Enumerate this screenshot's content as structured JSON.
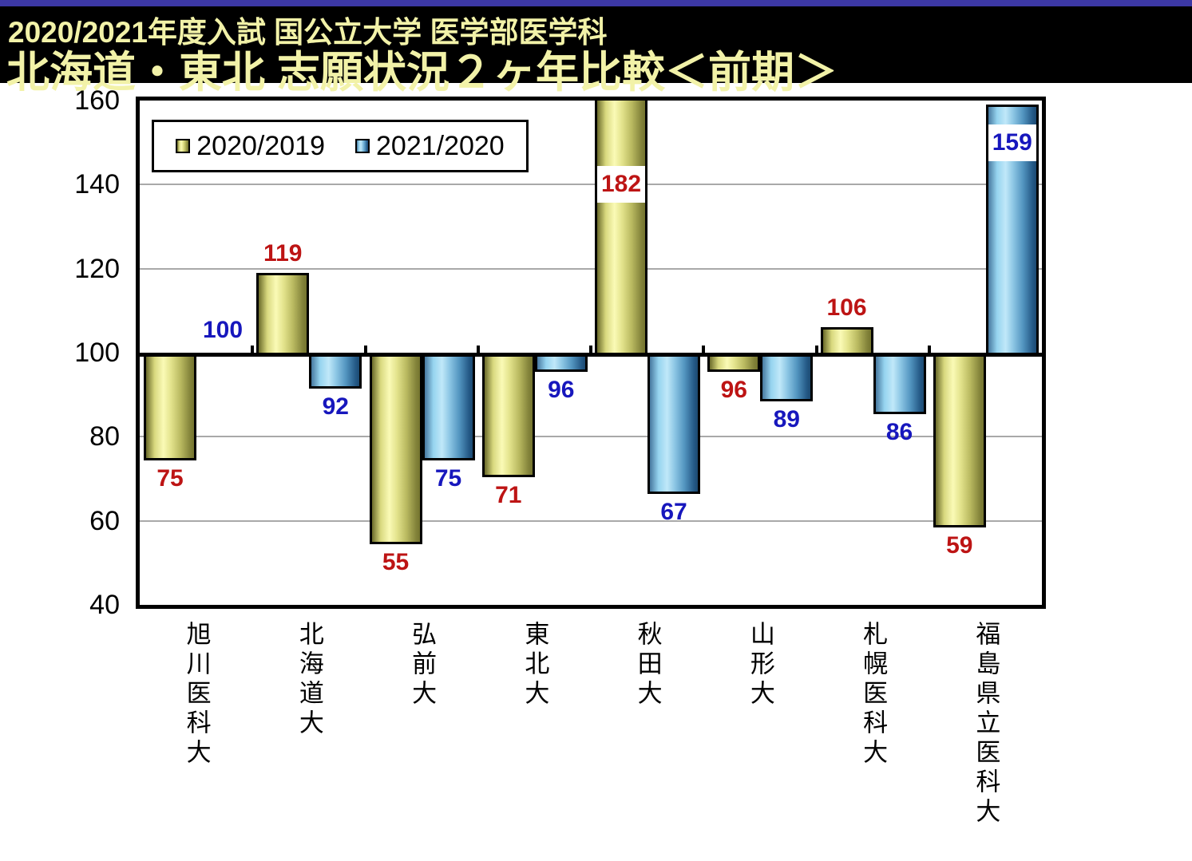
{
  "top_strip": {
    "color": "#3c38a5"
  },
  "header": {
    "bg": "#000000",
    "text_color": "#f2f2a8",
    "line1": "2020/2021年度入試 国公立大学 医学部医学科",
    "line2": "北海道・東北 志願状況２ヶ年比較＜前期＞"
  },
  "chart_data": {
    "type": "bar",
    "title": "北海道・東北 志願状況2ヶ年比較（前期） 前年度比指数",
    "categories": [
      "旭川医科大",
      "北海道大",
      "弘前大",
      "東北大",
      "秋田大",
      "山形大",
      "札幌医科大",
      "福島県立医科大"
    ],
    "series": [
      {
        "name": "2020/2019",
        "values": [
          75,
          119,
          55,
          71,
          182,
          96,
          106,
          59
        ],
        "label_color": "#bd1414",
        "label_pos": [
          "below",
          "above",
          "below",
          "below",
          "box:140",
          "below",
          "above",
          "below"
        ],
        "gradient": [
          "#6b6b2a",
          "#d9d97f",
          "#fafab6",
          "#e3e38c",
          "#b9b960",
          "#83833a",
          "#74742f"
        ]
      },
      {
        "name": "2021/2020",
        "values": [
          100,
          92,
          75,
          96,
          67,
          89,
          86,
          159
        ],
        "label_color": "#1717bd",
        "label_pos": [
          "above",
          "below",
          "below",
          "below",
          "below",
          "below",
          "below",
          "box:150"
        ],
        "gradient": [
          "#47789f",
          "#96d4ef",
          "#c0e8f9",
          "#8cc6e4",
          "#5395c0",
          "#255a87",
          "#1c4a72"
        ]
      }
    ],
    "baseline": 100,
    "ylim": [
      40,
      160
    ],
    "yticks": [
      40,
      60,
      80,
      100,
      120,
      140,
      160
    ],
    "grid": true,
    "grid_color": "#a9a9a9",
    "axis_color": "#000000",
    "legend_position": "top-left"
  }
}
